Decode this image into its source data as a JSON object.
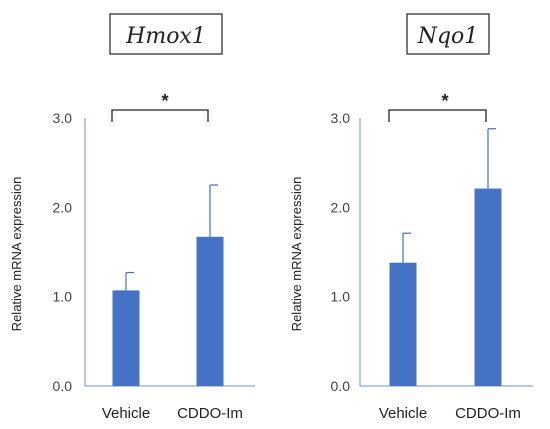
{
  "colors": {
    "bar": "#4472C4",
    "axis": "#8EA9DB",
    "text": "#222222"
  },
  "chart_data": [
    {
      "type": "bar",
      "title": "Hmox1",
      "xlabel": "",
      "ylabel": "Relative mRNA expression",
      "categories": [
        "Vehicle",
        "CDDO-Im"
      ],
      "values": [
        1.07,
        1.67
      ],
      "errors": [
        0.2,
        0.58
      ],
      "ylim": [
        0,
        3.0
      ],
      "yticks": [
        "0.0",
        "1.0",
        "2.0",
        "3.0"
      ],
      "significance": "*",
      "grid": false,
      "legend": "none"
    },
    {
      "type": "bar",
      "title": "Nqo1",
      "xlabel": "",
      "ylabel": "Relative mRNA expression",
      "categories": [
        "Vehicle",
        "CDDO-Im"
      ],
      "values": [
        1.38,
        2.21
      ],
      "errors": [
        0.33,
        0.67
      ],
      "ylim": [
        0,
        3.0
      ],
      "yticks": [
        "0.0",
        "1.0",
        "2.0",
        "3.0"
      ],
      "significance": "*",
      "grid": false,
      "legend": "none"
    }
  ]
}
